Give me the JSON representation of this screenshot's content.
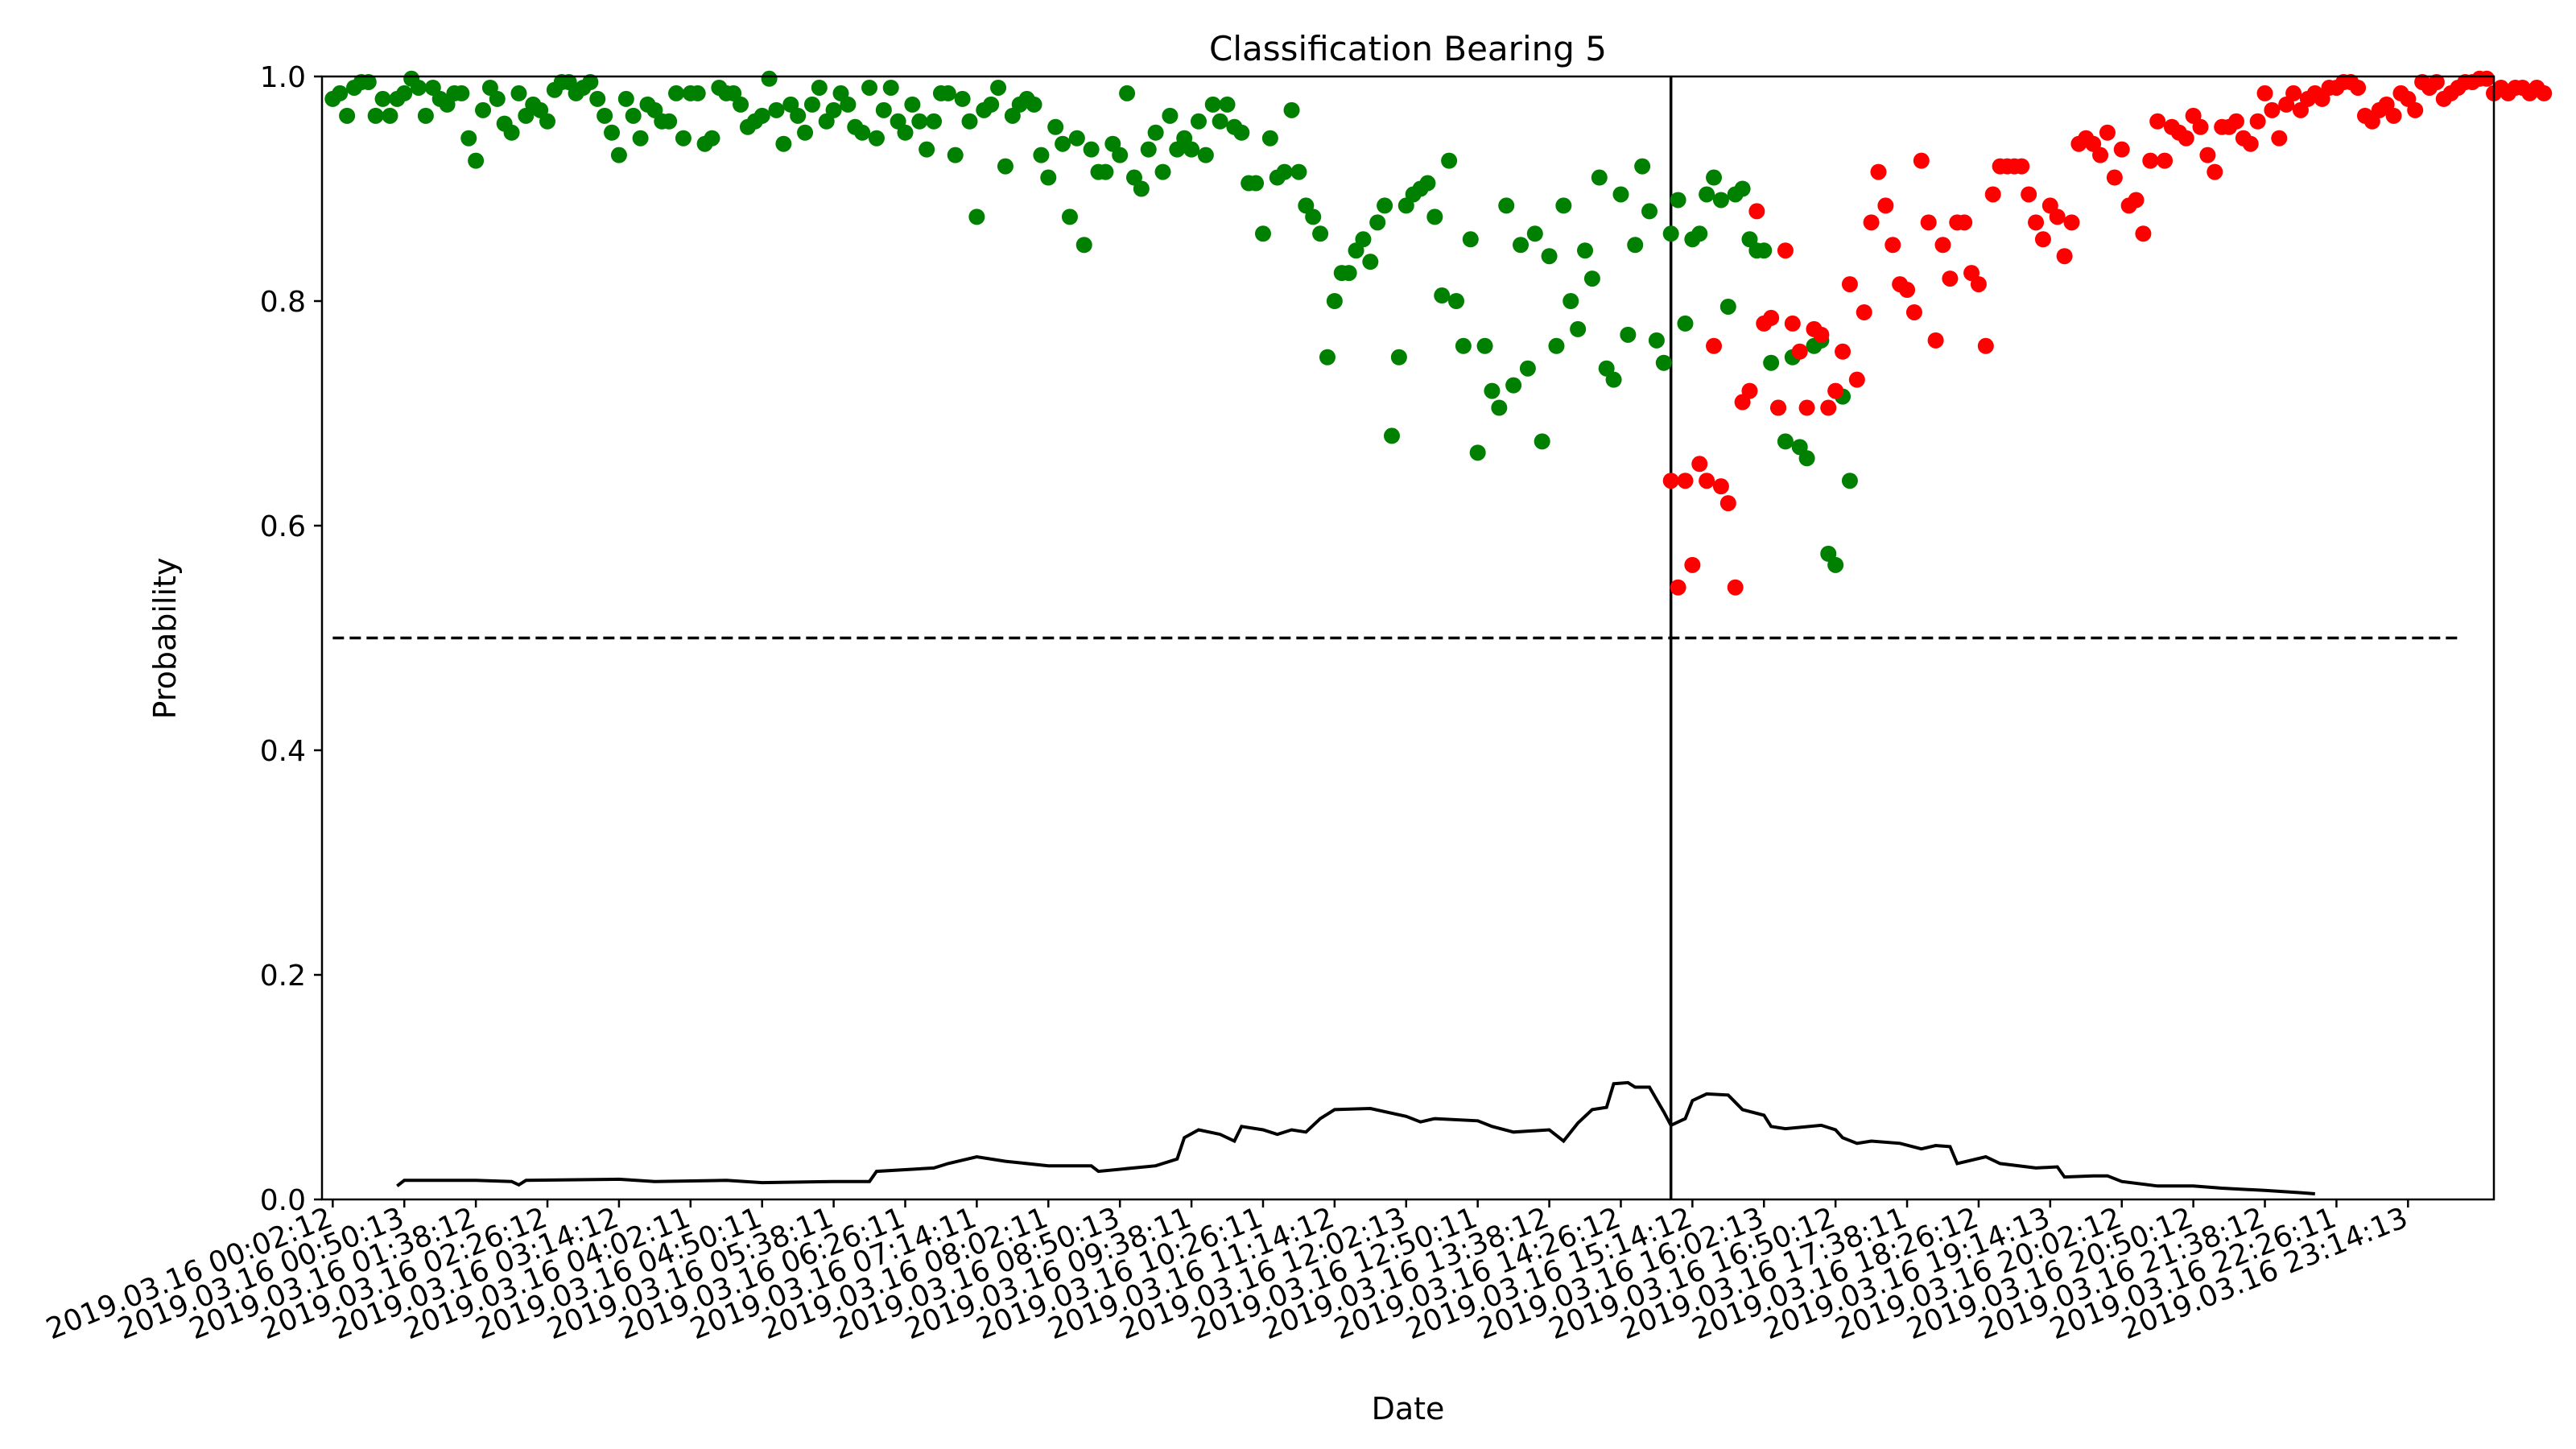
{
  "chart_data": {
    "type": "scatter",
    "title": "Classification Bearing 5",
    "xlabel": "Date",
    "ylabel": "Probability",
    "ylim": [
      0,
      1.0
    ],
    "yticks": [
      "0.0",
      "0.2",
      "0.4",
      "0.6",
      "0.8",
      "1.0"
    ],
    "xticks": [
      "2019.03.16 00:02:12",
      "2019.03.16 00:50:13",
      "2019.03.16 01:38:12",
      "2019.03.16 02:26:12",
      "2019.03.16 03:14:12",
      "2019.03.16 04:02:11",
      "2019.03.16 04:50:11",
      "2019.03.16 05:38:11",
      "2019.03.16 06:26:11",
      "2019.03.16 07:14:11",
      "2019.03.16 08:02:11",
      "2019.03.16 08:50:13",
      "2019.03.16 09:38:11",
      "2019.03.16 10:26:11",
      "2019.03.16 11:14:12",
      "2019.03.16 12:02:13",
      "2019.03.16 12:50:11",
      "2019.03.16 13:38:12",
      "2019.03.16 14:26:12",
      "2019.03.16 15:14:12",
      "2019.03.16 16:02:13",
      "2019.03.16 16:50:12",
      "2019.03.16 17:38:11",
      "2019.03.16 18:26:12",
      "2019.03.16 19:14:13",
      "2019.03.16 20:02:12",
      "2019.03.16 20:50:12",
      "2019.03.16 21:38:12",
      "2019.03.16 22:26:11",
      "2019.03.16 23:14:13"
    ],
    "xlim": [
      -1.5,
      302
    ],
    "threshold": 0.5,
    "change_point_index": 187,
    "series": [
      {
        "color": "#008000",
        "marker": "point",
        "x_start": 0,
        "values": [
          0.98,
          0.985,
          0.965,
          0.99,
          0.995,
          0.995,
          0.965,
          0.98,
          0.965,
          0.98,
          0.985,
          0.998,
          0.99,
          0.965,
          0.99,
          0.98,
          0.975,
          0.985,
          0.985,
          0.945,
          0.925,
          0.97,
          0.99,
          0.98,
          0.958,
          0.95,
          0.985,
          0.965,
          0.975,
          0.97,
          0.96,
          0.988,
          0.995,
          0.995,
          0.985,
          0.99,
          0.995,
          0.98,
          0.965,
          0.95,
          0.93,
          0.98,
          0.965,
          0.945,
          0.975,
          0.97,
          0.96,
          0.96,
          0.985,
          0.945,
          0.985,
          0.985,
          0.94,
          0.945,
          0.99,
          0.985,
          0.985,
          0.975,
          0.955,
          0.96,
          0.965,
          0.998,
          0.97,
          0.94,
          0.975,
          0.965,
          0.95,
          0.975,
          0.99,
          0.96,
          0.97,
          0.985,
          0.975,
          0.955,
          0.95,
          0.99,
          0.945,
          0.97,
          0.99,
          0.96,
          0.95,
          0.975,
          0.96,
          0.935,
          0.96,
          0.985,
          0.985,
          0.93,
          0.98,
          0.96,
          0.875,
          0.97,
          0.975,
          0.99,
          0.92,
          0.965,
          0.975,
          0.98,
          0.975,
          0.93,
          0.91,
          0.955,
          0.94,
          0.875,
          0.945,
          0.85,
          0.935,
          0.915,
          0.915,
          0.94,
          0.93,
          0.985,
          0.91,
          0.9,
          0.935,
          0.95,
          0.915,
          0.965,
          0.935,
          0.945,
          0.935,
          0.96,
          0.93,
          0.975,
          0.96,
          0.975,
          0.955,
          0.95,
          0.905,
          0.905,
          0.86,
          0.945,
          0.91,
          0.915,
          0.97,
          0.915,
          0.885,
          0.875,
          0.86,
          0.75,
          0.8,
          0.825,
          0.825,
          0.845,
          0.855,
          0.835,
          0.87,
          0.885,
          0.68,
          0.75,
          0.885,
          0.895,
          0.9,
          0.905,
          0.875,
          0.805,
          0.925,
          0.8,
          0.76,
          0.855,
          0.665,
          0.76,
          0.72,
          0.705,
          0.885,
          0.725,
          0.85,
          0.74,
          0.86,
          0.675,
          0.84,
          0.76,
          0.885,
          0.8,
          0.775,
          0.845,
          0.82,
          0.91,
          0.74,
          0.73,
          0.895,
          0.77,
          0.85,
          0.92,
          0.88,
          0.765,
          0.745,
          0.86,
          0.89,
          0.78,
          0.855,
          0.86,
          0.895,
          0.91,
          0.89,
          0.795,
          0.895,
          0.9,
          0.855,
          0.845,
          0.845,
          0.745,
          0.705,
          0.675,
          0.75,
          0.67,
          0.66,
          0.76,
          0.765,
          0.575,
          0.565,
          0.715,
          0.64
        ]
      },
      {
        "color": "#ff0000",
        "marker": "point",
        "x_start": 187,
        "values": [
          0.64,
          0.545,
          0.64,
          0.565,
          0.655,
          0.64,
          0.76,
          0.635,
          0.62,
          0.545,
          0.71,
          0.72,
          0.88,
          0.78,
          0.785,
          0.705,
          0.845,
          0.78,
          0.755,
          0.705,
          0.775,
          0.77,
          0.705,
          0.72,
          0.755,
          0.815,
          0.73,
          0.79,
          0.87,
          0.915,
          0.885,
          0.85,
          0.815,
          0.81,
          0.79,
          0.925,
          0.87,
          0.765,
          0.85,
          0.82,
          0.87,
          0.87,
          0.825,
          0.815,
          0.76,
          0.895,
          0.92,
          0.92,
          0.92,
          0.92,
          0.895,
          0.87,
          0.855,
          0.885,
          0.875,
          0.84,
          0.87,
          0.94,
          0.945,
          0.94,
          0.93,
          0.95,
          0.91,
          0.935,
          0.885,
          0.89,
          0.86,
          0.925,
          0.96,
          0.925,
          0.955,
          0.95,
          0.945,
          0.965,
          0.955,
          0.93,
          0.915,
          0.955,
          0.955,
          0.96,
          0.945,
          0.94,
          0.96,
          0.985,
          0.97,
          0.945,
          0.975,
          0.985,
          0.97,
          0.98,
          0.985,
          0.98,
          0.99,
          0.99,
          0.995,
          0.995,
          0.99,
          0.965,
          0.96,
          0.97,
          0.975,
          0.965,
          0.985,
          0.98,
          0.97,
          0.995,
          0.99,
          0.995,
          0.98,
          0.985,
          0.99,
          0.995,
          0.995,
          0.998,
          0.998,
          0.985,
          0.99,
          0.985,
          0.99,
          0.99,
          0.985,
          0.99,
          0.985
        ]
      }
    ],
    "line_series": {
      "color": "#000000",
      "points": [
        [
          9,
          0.012
        ],
        [
          10,
          0.017
        ],
        [
          20,
          0.017
        ],
        [
          25,
          0.016
        ],
        [
          26,
          0.013
        ],
        [
          27,
          0.017
        ],
        [
          40,
          0.018
        ],
        [
          45,
          0.016
        ],
        [
          55,
          0.017
        ],
        [
          60,
          0.015
        ],
        [
          70,
          0.016
        ],
        [
          75,
          0.016
        ],
        [
          76,
          0.025
        ],
        [
          84,
          0.028
        ],
        [
          86,
          0.032
        ],
        [
          90,
          0.038
        ],
        [
          94,
          0.034
        ],
        [
          100,
          0.03
        ],
        [
          106,
          0.03
        ],
        [
          107,
          0.025
        ],
        [
          115,
          0.03
        ],
        [
          118,
          0.036
        ],
        [
          119,
          0.055
        ],
        [
          121,
          0.062
        ],
        [
          124,
          0.058
        ],
        [
          126,
          0.052
        ],
        [
          127,
          0.065
        ],
        [
          130,
          0.062
        ],
        [
          132,
          0.058
        ],
        [
          134,
          0.062
        ],
        [
          136,
          0.06
        ],
        [
          138,
          0.072
        ],
        [
          140,
          0.08
        ],
        [
          145,
          0.081
        ],
        [
          150,
          0.074
        ],
        [
          152,
          0.069
        ],
        [
          154,
          0.072
        ],
        [
          160,
          0.07
        ],
        [
          162,
          0.065
        ],
        [
          165,
          0.06
        ],
        [
          170,
          0.062
        ],
        [
          172,
          0.052
        ],
        [
          174,
          0.068
        ],
        [
          176,
          0.08
        ],
        [
          178,
          0.082
        ],
        [
          179,
          0.103
        ],
        [
          181,
          0.104
        ],
        [
          182,
          0.1
        ],
        [
          184,
          0.1
        ],
        [
          186,
          0.078
        ],
        [
          187,
          0.066
        ],
        [
          189,
          0.072
        ],
        [
          190,
          0.088
        ],
        [
          192,
          0.094
        ],
        [
          195,
          0.093
        ],
        [
          197,
          0.08
        ],
        [
          200,
          0.075
        ],
        [
          201,
          0.065
        ],
        [
          203,
          0.063
        ],
        [
          208,
          0.066
        ],
        [
          210,
          0.062
        ],
        [
          211,
          0.055
        ],
        [
          213,
          0.05
        ],
        [
          215,
          0.052
        ],
        [
          219,
          0.05
        ],
        [
          222,
          0.045
        ],
        [
          224,
          0.048
        ],
        [
          226,
          0.047
        ],
        [
          227,
          0.032
        ],
        [
          231,
          0.038
        ],
        [
          233,
          0.032
        ],
        [
          238,
          0.028
        ],
        [
          241,
          0.029
        ],
        [
          242,
          0.02
        ],
        [
          246,
          0.021
        ],
        [
          248,
          0.021
        ],
        [
          250,
          0.016
        ],
        [
          255,
          0.012
        ],
        [
          260,
          0.012
        ],
        [
          264,
          0.01
        ],
        [
          270,
          0.008
        ],
        [
          275,
          0.006
        ],
        [
          277,
          0.005
        ]
      ]
    }
  }
}
